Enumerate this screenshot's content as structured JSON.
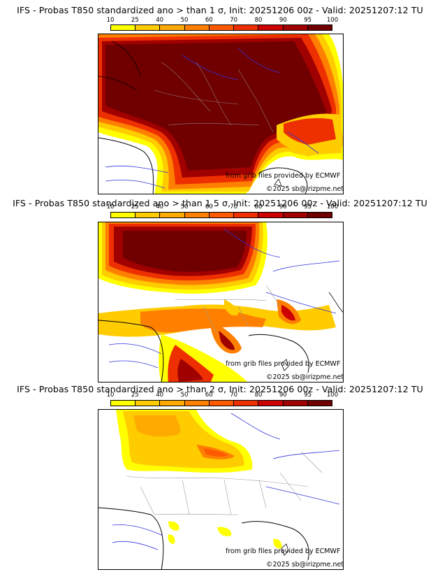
{
  "palette": {
    "p10": "#ffff00",
    "p25": "#ffcc00",
    "p40": "#ffaa00",
    "p50": "#ff8000",
    "p60": "#ff5a00",
    "p70": "#ee3000",
    "p80": "#cc0000",
    "p90": "#a00000",
    "p95": "#700000",
    "river": "#3333dd",
    "border": "#999999",
    "coast": "#000000"
  },
  "colorbar": {
    "ticks": [
      "10",
      "25",
      "40",
      "50",
      "60",
      "70",
      "80",
      "90",
      "95",
      "100"
    ],
    "colors": [
      "#ffff00",
      "#ffcc00",
      "#ffaa00",
      "#ff8000",
      "#ff5a00",
      "#ee3000",
      "#cc0000",
      "#a00000",
      "#700000"
    ]
  },
  "panels": [
    {
      "title": "IFS - Probas T850  standardized ano > than 1 σ, Init: 20251206 00z - Valid: 20251207:12 TU",
      "threshold_sigma": "1",
      "credit_source": "from grib files provided by ECMWF",
      "credit_copyright": "©2025 sb@irizpme.net"
    },
    {
      "title": "IFS - Probas T850  standardized ano > than 1.5 σ, Init: 20251206 00z - Valid: 20251207:12 TU",
      "threshold_sigma": "1.5",
      "credit_source": "from grib files provided by ECMWF",
      "credit_copyright": "©2025 sb@irizpme.net"
    },
    {
      "title": "IFS - Probas T850  standardized ano > than 2 σ, Init: 20251206 00z - Valid: 20251207:12 TU",
      "threshold_sigma": "2",
      "credit_source": "from grib files provided by ECMWF",
      "credit_copyright": "©2025 sb@irizpme.net"
    }
  ]
}
